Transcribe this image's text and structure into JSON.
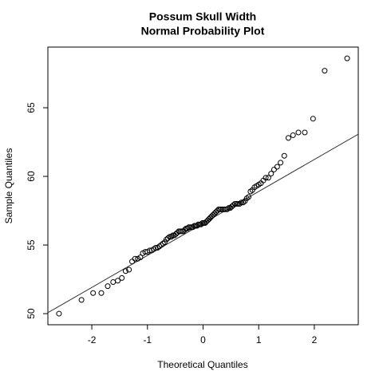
{
  "chart_data": {
    "type": "scatter",
    "title": "Possum Skull Width",
    "subtitle": "Normal Probability Plot",
    "x_label": "Theoretical Quantiles",
    "y_label": "Sample Quantiles",
    "x": [
      -2.59,
      -2.186,
      -1.977,
      -1.829,
      -1.714,
      -1.617,
      -1.534,
      -1.46,
      -1.393,
      -1.332,
      -1.276,
      -1.223,
      -1.174,
      -1.127,
      -1.083,
      -1.04,
      -1.0,
      -0.961,
      -0.923,
      -0.887,
      -0.852,
      -0.818,
      -0.785,
      -0.752,
      -0.721,
      -0.69,
      -0.659,
      -0.63,
      -0.601,
      -0.572,
      -0.544,
      -0.516,
      -0.489,
      -0.462,
      -0.435,
      -0.409,
      -0.383,
      -0.356,
      -0.331,
      -0.306,
      -0.281,
      -0.256,
      -0.231,
      -0.206,
      -0.182,
      -0.157,
      -0.133,
      -0.109,
      -0.085,
      -0.06,
      -0.036,
      -0.012,
      0.012,
      0.036,
      0.06,
      0.085,
      0.109,
      0.133,
      0.157,
      0.182,
      0.206,
      0.231,
      0.256,
      0.281,
      0.306,
      0.331,
      0.356,
      0.383,
      0.409,
      0.435,
      0.462,
      0.489,
      0.516,
      0.544,
      0.572,
      0.601,
      0.63,
      0.659,
      0.69,
      0.721,
      0.752,
      0.785,
      0.818,
      0.852,
      0.887,
      0.923,
      0.961,
      1.0,
      1.04,
      1.083,
      1.127,
      1.174,
      1.223,
      1.276,
      1.332,
      1.393,
      1.46,
      1.534,
      1.617,
      1.714,
      1.829,
      1.977,
      2.186,
      2.59
    ],
    "values": [
      50.0,
      51.0,
      51.5,
      51.5,
      52.0,
      52.3,
      52.4,
      52.6,
      53.1,
      53.2,
      53.8,
      54.0,
      54.0,
      54.1,
      54.4,
      54.5,
      54.5,
      54.6,
      54.6,
      54.7,
      54.8,
      54.8,
      54.9,
      55.0,
      55.1,
      55.2,
      55.4,
      55.5,
      55.6,
      55.6,
      55.7,
      55.7,
      55.8,
      55.9,
      56.0,
      56.0,
      56.0,
      56.0,
      56.1,
      56.2,
      56.2,
      56.3,
      56.3,
      56.3,
      56.3,
      56.4,
      56.4,
      56.4,
      56.5,
      56.5,
      56.5,
      56.6,
      56.6,
      56.6,
      56.7,
      56.8,
      56.9,
      57.0,
      57.1,
      57.2,
      57.3,
      57.4,
      57.5,
      57.6,
      57.6,
      57.6,
      57.6,
      57.6,
      57.6,
      57.6,
      57.7,
      57.7,
      57.8,
      57.9,
      58.0,
      58.0,
      58.0,
      58.0,
      58.1,
      58.1,
      58.2,
      58.4,
      58.5,
      58.9,
      59.0,
      59.2,
      59.3,
      59.4,
      59.5,
      59.7,
      59.9,
      59.9,
      60.2,
      60.5,
      60.7,
      61.0,
      61.5,
      62.8,
      63.0,
      63.2,
      63.2,
      64.2,
      67.7,
      68.6
    ],
    "color": "#000000",
    "reference_line": {
      "intercept": 56.57,
      "slope": 2.33,
      "color": "#333333"
    },
    "xlim": [
      -2.79,
      2.79
    ],
    "ylim": [
      49.19,
      69.42
    ],
    "xticks": [
      -2,
      -1,
      0,
      1,
      2
    ],
    "yticks": [
      50,
      55,
      60,
      65
    ],
    "grid": false
  }
}
